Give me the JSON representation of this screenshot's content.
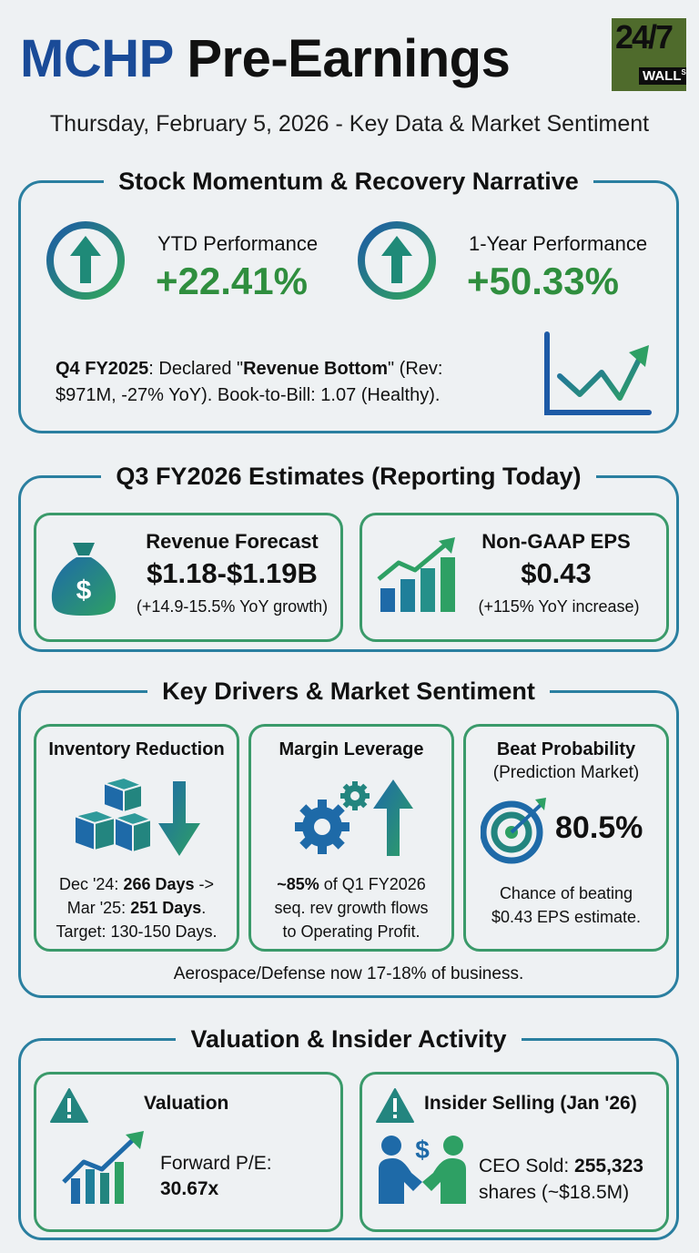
{
  "header": {
    "ticker": "MCHP",
    "title_rest": " Pre-Earnings",
    "subtitle": "Thursday, February 5, 2026 - Key Data & Market Sentiment",
    "logo": {
      "number": "24/7",
      "text": "WALL",
      "sup": "ST"
    }
  },
  "momentum": {
    "title": "Stock Momentum & Recovery Narrative",
    "ytd_label": "YTD Performance",
    "ytd_value": "+22.41%",
    "year_label": "1-Year Performance",
    "year_value": "+50.33%",
    "note_bold1": "Q4 FY2025",
    "note_text1": ": Declared \"",
    "note_bold2": "Revenue Bottom",
    "note_text2": "\" (Rev:",
    "note_line2": "$971M, -27% YoY). Book-to-Bill: 1.07 (Healthy)."
  },
  "estimates": {
    "title": "Q3 FY2026 Estimates (Reporting Today)",
    "revenue_label": "Revenue Forecast",
    "revenue_value": "$1.18-$1.19B",
    "revenue_note": "(+14.9-15.5% YoY growth)",
    "eps_label": "Non-GAAP EPS",
    "eps_value": "$0.43",
    "eps_note": "(+115% YoY increase)"
  },
  "drivers": {
    "title": "Key Drivers & Market Sentiment",
    "inventory": {
      "label": "Inventory Reduction",
      "l1a": "Dec '24: ",
      "l1b": "266 Days",
      "l1c": " ->",
      "l2a": "Mar '25: ",
      "l2b": "251 Days",
      "l2c": ".",
      "l3": "Target: 130-150 Days."
    },
    "margin": {
      "label": "Margin Leverage",
      "l1b": "~85%",
      "l1c": " of Q1 FY2026",
      "l2": "seq. rev growth flows",
      "l3": "to Operating Profit."
    },
    "beat": {
      "label": "Beat Probability",
      "sublabel": "(Prediction Market)",
      "value": "80.5%",
      "l1": "Chance of beating",
      "l2": "$0.43 EPS estimate."
    },
    "footer": "Aerospace/Defense now 17-18% of business."
  },
  "valuation": {
    "title": "Valuation & Insider Activity",
    "val_label": "Valuation",
    "pe_label": "Forward P/E:",
    "pe_value": "30.67x",
    "insider_label": "Insider Selling (Jan '26)",
    "ceo_a": "CEO Sold: ",
    "ceo_b": "255,323",
    "ceo_l2": "shares (~$18.5M)"
  },
  "colors": {
    "navy": "#1a4b98",
    "green": "#2f8e3e",
    "teal": "#23857f"
  }
}
